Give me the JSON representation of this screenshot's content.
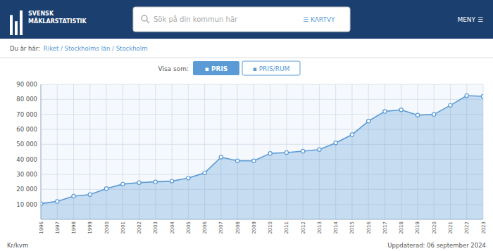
{
  "chart_data": {
    "type": "area",
    "x": [
      1996,
      1997,
      1998,
      1999,
      2000,
      2001,
      2002,
      2003,
      2004,
      2005,
      2006,
      2007,
      2008,
      2009,
      2010,
      2011,
      2012,
      2013,
      2014,
      2015,
      2016,
      2017,
      2018,
      2019,
      2020,
      2021,
      2022,
      2023
    ],
    "values": [
      10500,
      12000,
      15500,
      16500,
      20500,
      23500,
      24500,
      25000,
      25500,
      27500,
      31000,
      41500,
      39000,
      39000,
      44000,
      44500,
      45500,
      46500,
      51000,
      56500,
      65500,
      72000,
      73000,
      69500,
      70000,
      76000,
      82500,
      82000
    ],
    "color": "#5b9bd5",
    "marker": "circle",
    "grid": true,
    "y_label": "Kr/kvm",
    "xlim": [
      1996,
      2023
    ],
    "xticks": [
      1996,
      1997,
      1998,
      1999,
      2000,
      2001,
      2002,
      2003,
      2004,
      2005,
      2006,
      2007,
      2008,
      2009,
      2010,
      2011,
      2012,
      2013,
      2014,
      2015,
      2016,
      2017,
      2018,
      2019,
      2020,
      2021,
      2022,
      2023
    ],
    "ylim": [
      0,
      90000
    ],
    "yticks": [
      {
        "value": 10000,
        "label": "10 000"
      },
      {
        "value": 20000,
        "label": "20 000"
      },
      {
        "value": 30000,
        "label": "30 000"
      },
      {
        "value": 40000,
        "label": "40 000"
      },
      {
        "value": 50000,
        "label": "50 000"
      },
      {
        "value": 60000,
        "label": "60 000"
      },
      {
        "value": 70000,
        "label": "70 000"
      },
      {
        "value": 80000,
        "label": "80 000"
      },
      {
        "value": 90000,
        "label": "90 000"
      }
    ],
    "annotations": [
      "SVENSK",
      "MÄKLARSTATISTIK",
      "Sök på din kommun här",
      "☰ KARTVY",
      "MENY ☰",
      "Du är här:",
      "Riket / Stockholms län / Stockholm",
      "Visa som:",
      "▪ PRIS",
      "▪ PRIS/RUM",
      "Uppdaterad: 06 september 2024"
    ]
  }
}
